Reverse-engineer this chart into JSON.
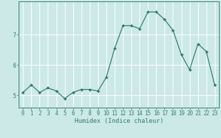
{
  "x": [
    0,
    1,
    2,
    3,
    4,
    5,
    6,
    7,
    8,
    9,
    10,
    11,
    12,
    13,
    14,
    15,
    16,
    17,
    18,
    19,
    20,
    21,
    22,
    23
  ],
  "y": [
    5.1,
    5.35,
    5.1,
    5.25,
    5.15,
    4.9,
    5.1,
    5.2,
    5.2,
    5.15,
    5.6,
    6.55,
    7.3,
    7.3,
    7.2,
    7.75,
    7.75,
    7.5,
    7.15,
    6.35,
    5.85,
    6.7,
    6.45,
    5.35
  ],
  "xlabel": "Humidex (Indice chaleur)",
  "line_color": "#2e7d6e",
  "marker": "D",
  "marker_size": 2.0,
  "bg_color": "#cce9e8",
  "grid_color": "#ffffff",
  "tick_color": "#2e7d6e",
  "label_color": "#2e7d6e",
  "ylim": [
    4.6,
    8.1
  ],
  "yticks": [
    5,
    6,
    7
  ],
  "xlim": [
    -0.5,
    23.5
  ],
  "axis_fontsize": 6.5,
  "tick_fontsize": 5.5,
  "linewidth": 0.9
}
